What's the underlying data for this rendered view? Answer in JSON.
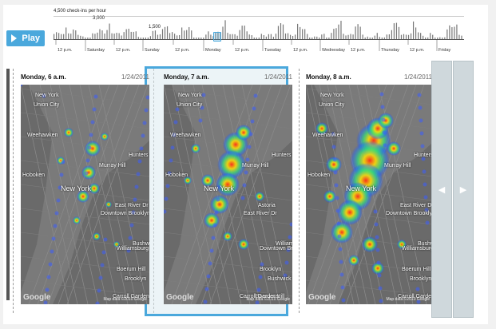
{
  "timeline": {
    "y_max_label": "4,500 check-ins per hour",
    "y_mid_label": "3,000",
    "y_low_label": "1,500",
    "ticks": [
      "12 p.m.",
      "Saturday",
      "12 p.m.",
      "Sunday",
      "12 p.m.",
      "Monday",
      "12 p.m.",
      "Tuesday",
      "12 p.m.",
      "Wednesday",
      "12 p.m.",
      "Thursday",
      "12 p.m.",
      "Friday"
    ],
    "bar_color": "#777777"
  },
  "play_button": {
    "label": "Play",
    "color": "#4aa8dc"
  },
  "cards": [
    {
      "title": "Monday, 6 a.m.",
      "date": "1/24/2011",
      "labels": [
        "New York",
        "Union City",
        "Weehawken",
        "Hoboken",
        "New York",
        "Murray Hill",
        "Hunters Point",
        "East River Dr",
        "Downtown Brooklyn",
        "Williamsburg",
        "Bushwick",
        "Brooklyn",
        "Boerum Hill",
        "Carroll Gardens"
      ],
      "heat_level": "low"
    },
    {
      "title": "Monday, 7 a.m.",
      "date": "1/24/2011",
      "labels": [
        "New York",
        "Union City",
        "Weehawken",
        "Hoboken",
        "New York",
        "Murray Hill",
        "Hunters Point",
        "Astoria",
        "East River Dr",
        "Downtown Brooklyn",
        "Williamsburg",
        "Bushwick",
        "Brooklyn",
        "Boerum Hill",
        "Carroll Gardens"
      ],
      "heat_level": "medium"
    },
    {
      "title": "Monday, 8 a.m.",
      "date": "1/24/2011",
      "labels": [
        "New York",
        "Union City",
        "Weehawken",
        "Hoboken",
        "New York",
        "Murray Hill",
        "Hunters Point",
        "East River Dr",
        "Downtown Brooklyn",
        "Williamsburg",
        "Bushwick",
        "Brooklyn",
        "Boerum Hill",
        "Carroll Gardens"
      ],
      "heat_level": "high"
    }
  ],
  "google_label": "Google",
  "map_data_label": "Map data ©2010 Google",
  "nav": {
    "prev_icon": "chevron-left-icon",
    "next_icon": "chevron-right-icon"
  },
  "colors": {
    "accent": "#4aa8dc",
    "map_bg": "#6a6a6a"
  }
}
